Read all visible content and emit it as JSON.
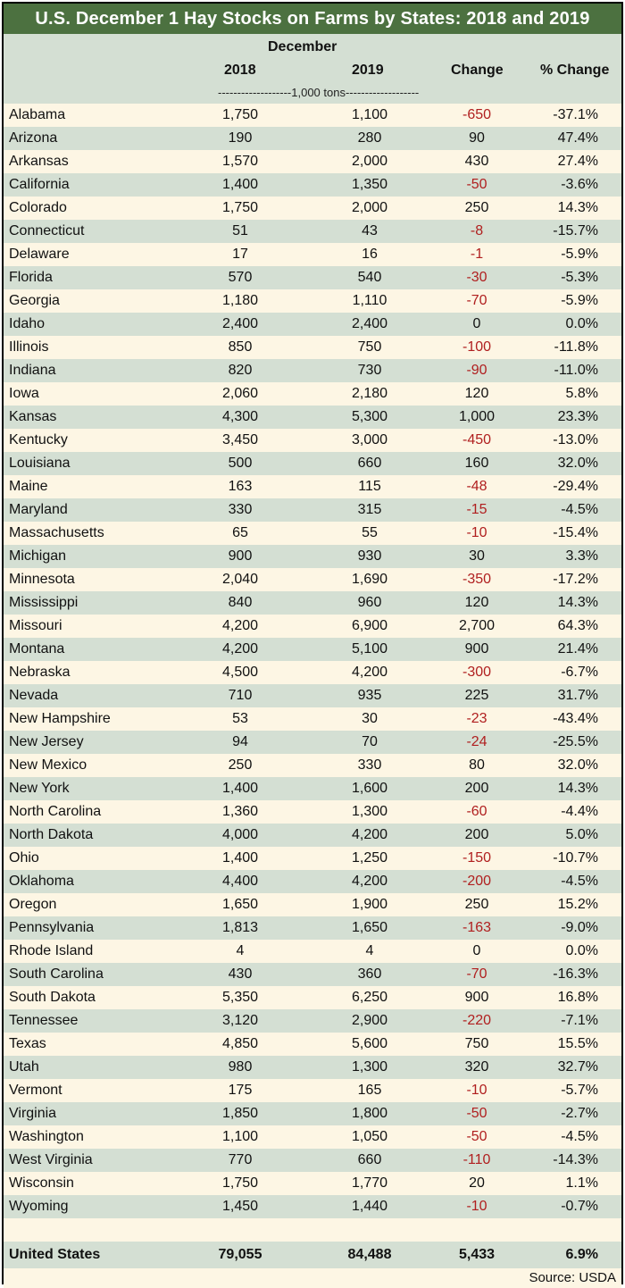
{
  "title": "U.S. December 1 Hay Stocks on Farms by States: 2018 and 2019",
  "header": {
    "group": "December",
    "col1": "2018",
    "col2": "2019",
    "col3": "Change",
    "col4": "% Change",
    "units": "-------------------1,000 tons-------------------"
  },
  "rows": [
    {
      "state": "Alabama",
      "y2018": "1,750",
      "y2019": "1,100",
      "change": "-650",
      "pct": "-37.1%"
    },
    {
      "state": "Arizona",
      "y2018": "190",
      "y2019": "280",
      "change": "90",
      "pct": "47.4%"
    },
    {
      "state": "Arkansas",
      "y2018": "1,570",
      "y2019": "2,000",
      "change": "430",
      "pct": "27.4%"
    },
    {
      "state": "California",
      "y2018": "1,400",
      "y2019": "1,350",
      "change": "-50",
      "pct": "-3.6%"
    },
    {
      "state": "Colorado",
      "y2018": "1,750",
      "y2019": "2,000",
      "change": "250",
      "pct": "14.3%"
    },
    {
      "state": "Connecticut",
      "y2018": "51",
      "y2019": "43",
      "change": "-8",
      "pct": "-15.7%"
    },
    {
      "state": "Delaware",
      "y2018": "17",
      "y2019": "16",
      "change": "-1",
      "pct": "-5.9%"
    },
    {
      "state": "Florida",
      "y2018": "570",
      "y2019": "540",
      "change": "-30",
      "pct": "-5.3%"
    },
    {
      "state": "Georgia",
      "y2018": "1,180",
      "y2019": "1,110",
      "change": "-70",
      "pct": "-5.9%"
    },
    {
      "state": "Idaho",
      "y2018": "2,400",
      "y2019": "2,400",
      "change": "0",
      "pct": "0.0%"
    },
    {
      "state": "Illinois",
      "y2018": "850",
      "y2019": "750",
      "change": "-100",
      "pct": "-11.8%"
    },
    {
      "state": "Indiana",
      "y2018": "820",
      "y2019": "730",
      "change": "-90",
      "pct": "-11.0%"
    },
    {
      "state": "Iowa",
      "y2018": "2,060",
      "y2019": "2,180",
      "change": "120",
      "pct": "5.8%"
    },
    {
      "state": "Kansas",
      "y2018": "4,300",
      "y2019": "5,300",
      "change": "1,000",
      "pct": "23.3%"
    },
    {
      "state": "Kentucky",
      "y2018": "3,450",
      "y2019": "3,000",
      "change": "-450",
      "pct": "-13.0%"
    },
    {
      "state": "Louisiana",
      "y2018": "500",
      "y2019": "660",
      "change": "160",
      "pct": "32.0%"
    },
    {
      "state": "Maine",
      "y2018": "163",
      "y2019": "115",
      "change": "-48",
      "pct": "-29.4%"
    },
    {
      "state": "Maryland",
      "y2018": "330",
      "y2019": "315",
      "change": "-15",
      "pct": "-4.5%"
    },
    {
      "state": "Massachusetts",
      "y2018": "65",
      "y2019": "55",
      "change": "-10",
      "pct": "-15.4%"
    },
    {
      "state": "Michigan",
      "y2018": "900",
      "y2019": "930",
      "change": "30",
      "pct": "3.3%"
    },
    {
      "state": "Minnesota",
      "y2018": "2,040",
      "y2019": "1,690",
      "change": "-350",
      "pct": "-17.2%"
    },
    {
      "state": "Mississippi",
      "y2018": "840",
      "y2019": "960",
      "change": "120",
      "pct": "14.3%"
    },
    {
      "state": "Missouri",
      "y2018": "4,200",
      "y2019": "6,900",
      "change": "2,700",
      "pct": "64.3%"
    },
    {
      "state": "Montana",
      "y2018": "4,200",
      "y2019": "5,100",
      "change": "900",
      "pct": "21.4%"
    },
    {
      "state": "Nebraska",
      "y2018": "4,500",
      "y2019": "4,200",
      "change": "-300",
      "pct": "-6.7%"
    },
    {
      "state": "Nevada",
      "y2018": "710",
      "y2019": "935",
      "change": "225",
      "pct": "31.7%"
    },
    {
      "state": "New Hampshire",
      "y2018": "53",
      "y2019": "30",
      "change": "-23",
      "pct": "-43.4%"
    },
    {
      "state": "New Jersey",
      "y2018": "94",
      "y2019": "70",
      "change": "-24",
      "pct": "-25.5%"
    },
    {
      "state": "New Mexico",
      "y2018": "250",
      "y2019": "330",
      "change": "80",
      "pct": "32.0%"
    },
    {
      "state": "New York",
      "y2018": "1,400",
      "y2019": "1,600",
      "change": "200",
      "pct": "14.3%"
    },
    {
      "state": "North Carolina",
      "y2018": "1,360",
      "y2019": "1,300",
      "change": "-60",
      "pct": "-4.4%"
    },
    {
      "state": "North Dakota",
      "y2018": "4,000",
      "y2019": "4,200",
      "change": "200",
      "pct": "5.0%"
    },
    {
      "state": "Ohio",
      "y2018": "1,400",
      "y2019": "1,250",
      "change": "-150",
      "pct": "-10.7%"
    },
    {
      "state": "Oklahoma",
      "y2018": "4,400",
      "y2019": "4,200",
      "change": "-200",
      "pct": "-4.5%"
    },
    {
      "state": "Oregon",
      "y2018": "1,650",
      "y2019": "1,900",
      "change": "250",
      "pct": "15.2%"
    },
    {
      "state": "Pennsylvania",
      "y2018": "1,813",
      "y2019": "1,650",
      "change": "-163",
      "pct": "-9.0%"
    },
    {
      "state": "Rhode Island",
      "y2018": "4",
      "y2019": "4",
      "change": "0",
      "pct": "0.0%"
    },
    {
      "state": "South Carolina",
      "y2018": "430",
      "y2019": "360",
      "change": "-70",
      "pct": "-16.3%"
    },
    {
      "state": "South Dakota",
      "y2018": "5,350",
      "y2019": "6,250",
      "change": "900",
      "pct": "16.8%"
    },
    {
      "state": "Tennessee",
      "y2018": "3,120",
      "y2019": "2,900",
      "change": "-220",
      "pct": "-7.1%"
    },
    {
      "state": "Texas",
      "y2018": "4,850",
      "y2019": "5,600",
      "change": "750",
      "pct": "15.5%"
    },
    {
      "state": "Utah",
      "y2018": "980",
      "y2019": "1,300",
      "change": "320",
      "pct": "32.7%"
    },
    {
      "state": "Vermont",
      "y2018": "175",
      "y2019": "165",
      "change": "-10",
      "pct": "-5.7%"
    },
    {
      "state": "Virginia",
      "y2018": "1,850",
      "y2019": "1,800",
      "change": "-50",
      "pct": "-2.7%"
    },
    {
      "state": "Washington",
      "y2018": "1,100",
      "y2019": "1,050",
      "change": "-50",
      "pct": "-4.5%"
    },
    {
      "state": "West Virginia",
      "y2018": "770",
      "y2019": "660",
      "change": "-110",
      "pct": "-14.3%"
    },
    {
      "state": "Wisconsin",
      "y2018": "1,750",
      "y2019": "1,770",
      "change": "20",
      "pct": "1.1%"
    },
    {
      "state": "Wyoming",
      "y2018": "1,450",
      "y2019": "1,440",
      "change": "-10",
      "pct": "-0.7%"
    }
  ],
  "total": {
    "state": "United States",
    "y2018": "79,055",
    "y2019": "84,488",
    "change": "5,433",
    "pct": "6.9%"
  },
  "source": "Source: USDA",
  "colors": {
    "title_bg": "#4c7140",
    "band_green": "#d4dfd3",
    "band_cream": "#fdf6e4",
    "negative": "#b01f1f"
  }
}
